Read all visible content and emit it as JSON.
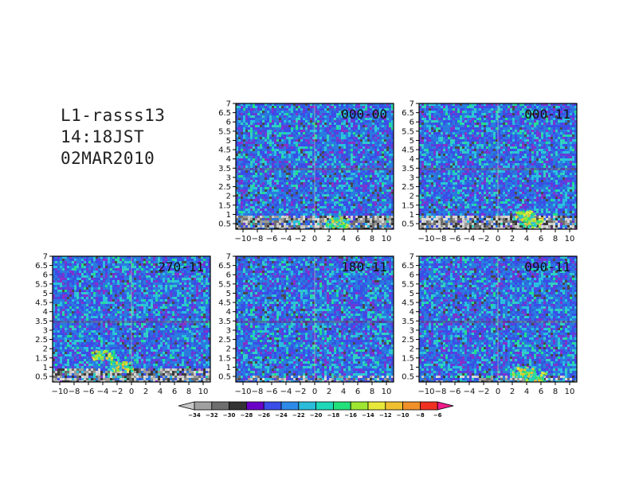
{
  "header": {
    "line1": "L1-rasss13",
    "line2": "14:18JST",
    "line3": "02MAR2010"
  },
  "chart_data": {
    "type": "heatmap",
    "xlim": [
      -11,
      11
    ],
    "ylim": [
      0.2,
      7
    ],
    "xticks": [
      "-10",
      "-8",
      "-6",
      "-4",
      "-2",
      "0",
      "2",
      "4",
      "6",
      "8",
      "10"
    ],
    "yticks": [
      "0.5",
      "1",
      "1.5",
      "2",
      "2.5",
      "3",
      "3.5",
      "4",
      "4.5",
      "5",
      "5.5",
      "6",
      "6.5",
      "7"
    ],
    "panels": [
      {
        "label": "000-00",
        "hot_spots": [
          {
            "x": 3.0,
            "y": 0.6,
            "value": -17
          }
        ]
      },
      {
        "label": "000-11",
        "hot_spots": [
          {
            "x": 3.5,
            "y": 1.0,
            "value": -20
          },
          {
            "x": 4.5,
            "y": 0.6,
            "value": -16
          }
        ]
      },
      {
        "label": "270-11",
        "hot_spots": [
          {
            "x": -4.0,
            "y": 1.7,
            "value": -17
          },
          {
            "x": -1.5,
            "y": 1.1,
            "value": -13
          }
        ]
      },
      {
        "label": "180-11",
        "hot_spots": []
      },
      {
        "label": "090-11",
        "hot_spots": [
          {
            "x": 3.5,
            "y": 0.8,
            "value": -15
          },
          {
            "x": 5.0,
            "y": 0.5,
            "value": -13
          }
        ]
      }
    ],
    "colorbar": {
      "labels": [
        "-34",
        "-32",
        "-30",
        "-28",
        "-26",
        "-24",
        "-22",
        "-20",
        "-18",
        "-16",
        "-14",
        "-12",
        "-10",
        "-8",
        "-6"
      ],
      "colors": [
        "#a0a0a0",
        "#6e6e6e",
        "#333333",
        "#6a00c8",
        "#3a4de8",
        "#2d8ae8",
        "#2abcd8",
        "#1ed8b8",
        "#22e07a",
        "#9ee632",
        "#e8e83a",
        "#f0c030",
        "#f09028",
        "#f03020",
        "#f01a8a"
      ],
      "lowColor": "#c8c8c8"
    }
  }
}
